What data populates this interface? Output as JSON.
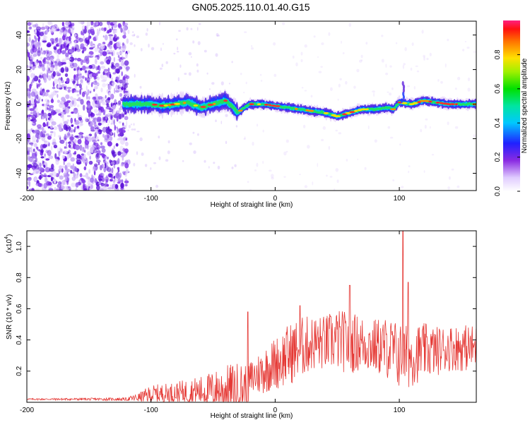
{
  "title": "GN05.2025.110.01.40.G15",
  "chart_data": [
    {
      "type": "heatmap",
      "xlabel": "Height of straight line (km)",
      "ylabel": "Frequency (Hz)",
      "xlim": [
        -200,
        162
      ],
      "ylim": [
        -50,
        48
      ],
      "xticks": [
        -200,
        -100,
        0,
        100
      ],
      "yticks": [
        -40,
        -20,
        0,
        20,
        40
      ],
      "colorbar": {
        "label": "Normalized spectral amplitude",
        "range": [
          0,
          1
        ],
        "ticks": [
          "0.0",
          "0.2",
          "0.4",
          "0.6",
          "0.8"
        ]
      },
      "ridge": {
        "x": [
          -122,
          -110,
          -100,
          -90,
          -80,
          -70,
          -60,
          -50,
          -40,
          -35,
          -30,
          -25,
          -20,
          -10,
          0,
          10,
          20,
          30,
          40,
          50,
          55,
          60,
          70,
          80,
          90,
          95,
          100,
          110,
          120,
          130,
          140,
          150,
          162
        ],
        "y": [
          0,
          0,
          0,
          -1,
          0,
          1,
          -2,
          0,
          2,
          -1,
          -5,
          -2,
          0,
          0,
          -1,
          -2,
          -3,
          -4,
          -5,
          -7,
          -6,
          -5,
          -3,
          -3,
          -2,
          -3,
          1,
          0,
          2,
          1,
          0,
          0,
          0
        ]
      }
    },
    {
      "type": "line",
      "xlabel": "Height of straight line (km)",
      "ylabel": "SNR (10 * v/v)",
      "ymultiplier": "(x10",
      "ymultiplier_exp": "4",
      "ymultiplier_close": ")",
      "xlim": [
        -200,
        162
      ],
      "ylim": [
        0,
        1.1
      ],
      "xticks": [
        -200,
        -100,
        0,
        100
      ],
      "yticks": [
        "0.2",
        "0.4",
        "0.6",
        "0.8",
        "1.0"
      ],
      "color": "#e53935",
      "envelope": {
        "x": [
          -200,
          -150,
          -120,
          -110,
          -100,
          -80,
          -60,
          -50,
          -40,
          -30,
          -22,
          -20,
          -10,
          0,
          10,
          20,
          30,
          40,
          50,
          60,
          70,
          80,
          90,
          100,
          103,
          110,
          120,
          130,
          140,
          150,
          162
        ],
        "baseline": [
          0.02,
          0.02,
          0.02,
          0.03,
          0.05,
          0.06,
          0.07,
          0.08,
          0.08,
          0.08,
          0.1,
          0.15,
          0.2,
          0.25,
          0.3,
          0.35,
          0.38,
          0.38,
          0.4,
          0.38,
          0.38,
          0.36,
          0.35,
          0.3,
          0.28,
          0.3,
          0.33,
          0.33,
          0.35,
          0.35,
          0.35
        ],
        "amplitude": [
          0.005,
          0.008,
          0.01,
          0.03,
          0.06,
          0.07,
          0.1,
          0.12,
          0.16,
          0.18,
          0.15,
          0.12,
          0.15,
          0.17,
          0.2,
          0.2,
          0.18,
          0.18,
          0.2,
          0.2,
          0.18,
          0.18,
          0.2,
          0.22,
          0.22,
          0.2,
          0.18,
          0.16,
          0.15,
          0.15,
          0.15
        ]
      },
      "spikes": [
        {
          "x": -22,
          "y": 0.58
        },
        {
          "x": 20,
          "y": 0.62
        },
        {
          "x": 60,
          "y": 0.75
        },
        {
          "x": 103,
          "y": 1.1
        },
        {
          "x": 107,
          "y": 0.77
        }
      ]
    }
  ]
}
